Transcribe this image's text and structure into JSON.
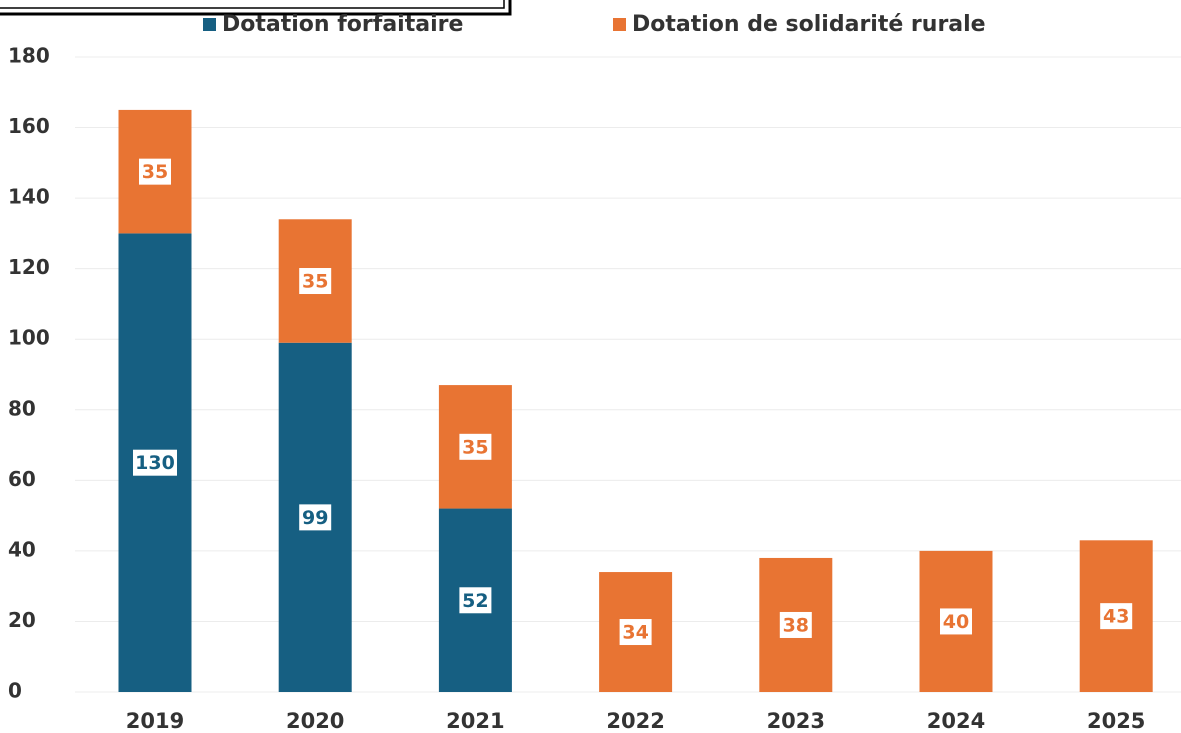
{
  "chart_data": {
    "type": "stacked_bar",
    "categories": [
      "2019",
      "2020",
      "2021",
      "2022",
      "2023",
      "2024",
      "2025"
    ],
    "series": [
      {
        "name": "Dotation forfaitaire",
        "color": "#165f82",
        "values": [
          130,
          99,
          52,
          null,
          null,
          null,
          null
        ]
      },
      {
        "name": "Dotation de solidarité rurale",
        "color": "#e87433",
        "values": [
          35,
          35,
          35,
          34,
          38,
          40,
          43
        ]
      }
    ],
    "ylim": [
      0,
      180
    ],
    "yticks": [
      0,
      20,
      40,
      60,
      80,
      100,
      120,
      140,
      160,
      180
    ],
    "grid": true
  }
}
